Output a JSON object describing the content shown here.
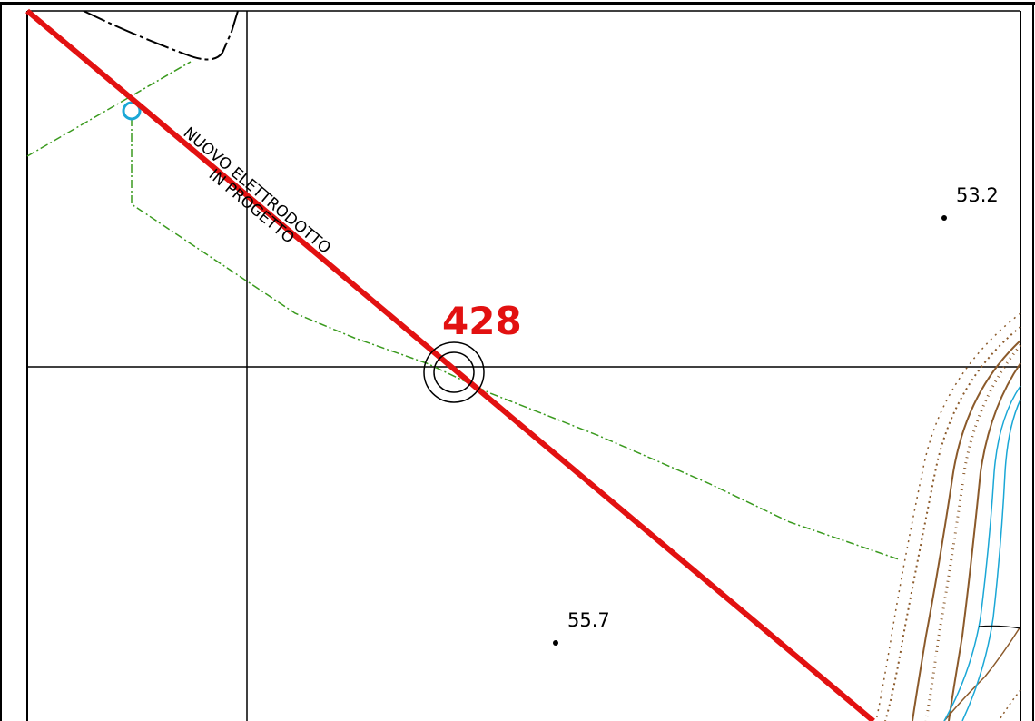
{
  "map": {
    "line_label_1": "NUOVO ELETTRODOTTO",
    "line_label_2": "IN PROGETTO",
    "pylon_label": "428",
    "spot_heights": [
      {
        "id": "elev-53-2",
        "value": "53.2"
      },
      {
        "id": "elev-55-7",
        "value": "55.7"
      }
    ],
    "colors": {
      "powerline": "#e21111",
      "boundary": "#3a9a1e",
      "contour": "#8b5a2b",
      "river": "#1aa7d6",
      "grid": "#000000"
    }
  }
}
